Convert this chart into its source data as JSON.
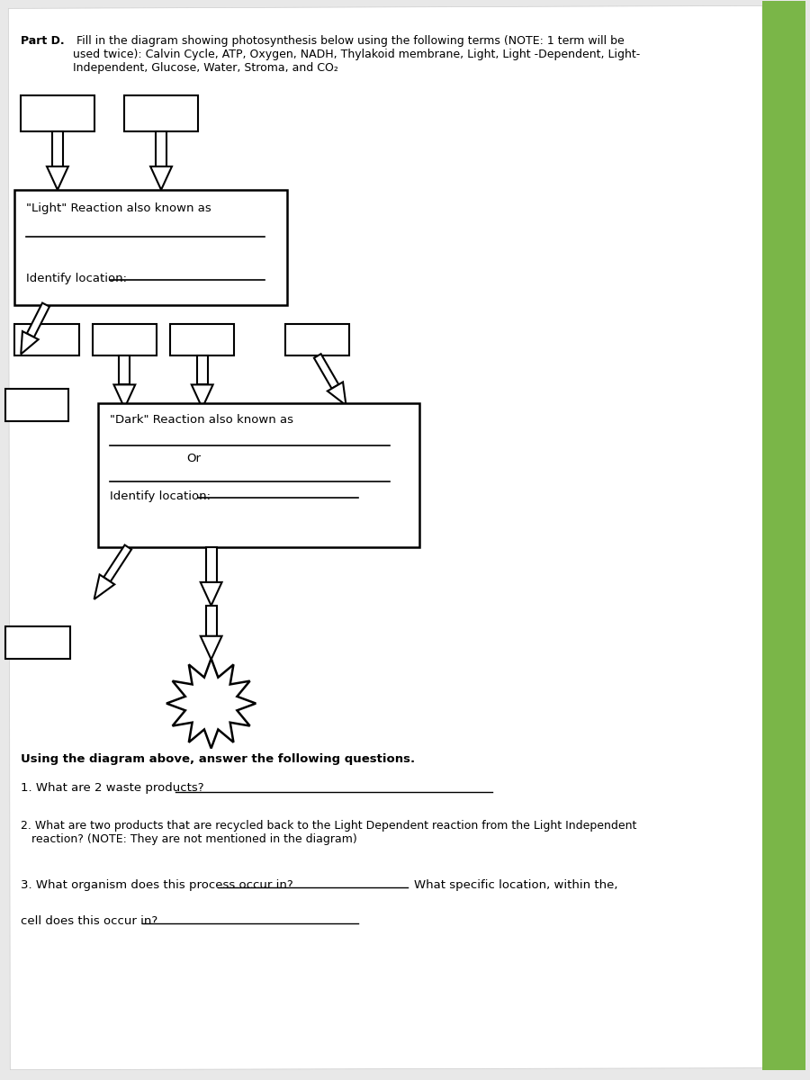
{
  "title_bold": "Part D.",
  "title_text": " Fill in the diagram showing photosynthesis below using the following terms (NOTE: 1 term will be\nused twice): Calvin Cycle, ATP, Oxygen, NADH, Thylakoid membrane, Light, Light -Dependent, Light-\nIndependent, Glucose, Water, Stroma, and CO₂",
  "bg_color": "#e8e8e8",
  "paper_color": "#ffffff",
  "light_reaction_label": "\"Light\" Reaction also known as",
  "light_identify": "Identify location:",
  "dark_reaction_label": "\"Dark\" Reaction also known as",
  "dark_or": "Or",
  "dark_identify": "Identify location:",
  "questions_header": "Using the diagram above, answer the following questions.",
  "q1": "1. What are 2 waste products?",
  "q2": "2. What are two products that are recycled back to the Light Dependent reaction from the Light Independent\n   reaction? (NOTE: They are not mentioned in the diagram)",
  "q3a": "3. What organism does this process occur in?",
  "q3b": "What specific location, within the,",
  "q3c": "cell does this occur in?",
  "green_color": "#7ab648"
}
